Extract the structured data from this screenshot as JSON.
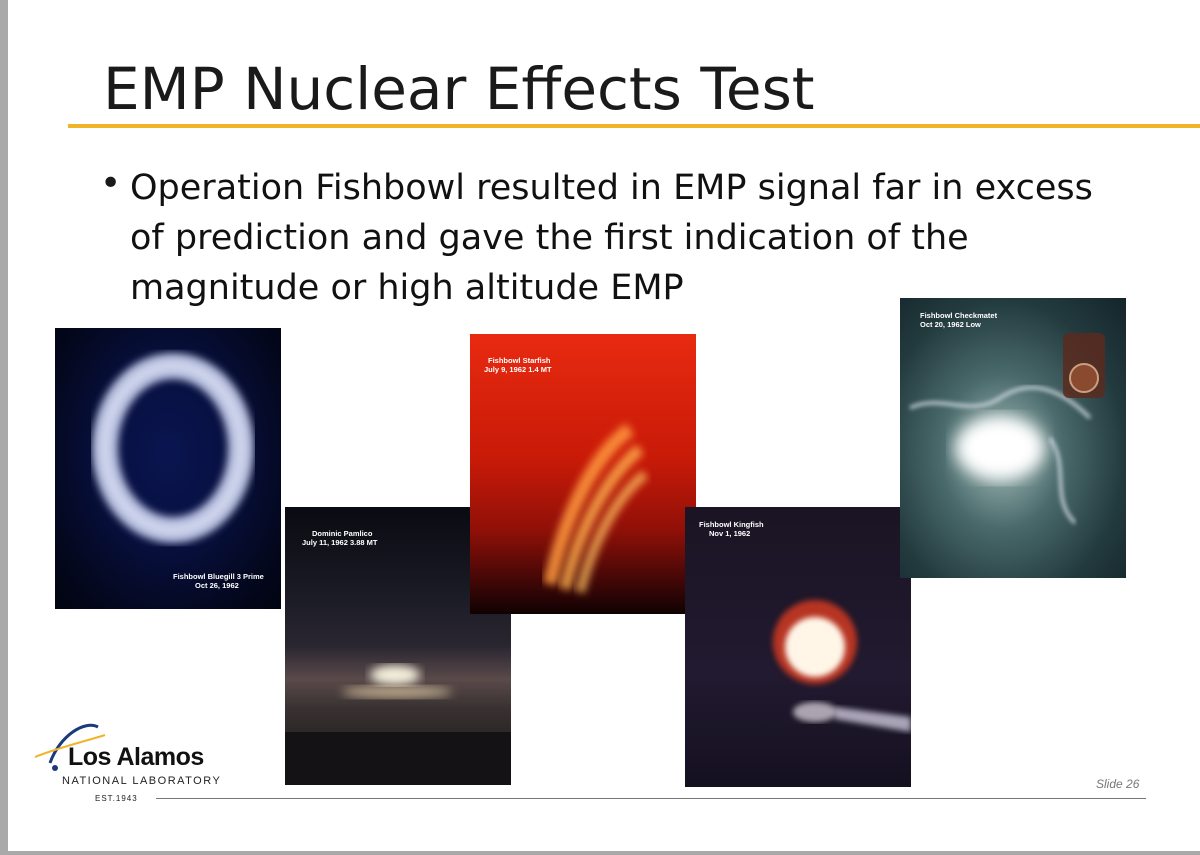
{
  "slide": {
    "title": "EMP Nuclear Effects Test",
    "bullet": "Operation Fishbowl  resulted in EMP signal far in excess of prediction and gave the first indication of the magnitude or high altitude EMP",
    "slide_number": "Slide 26"
  },
  "photos": [
    {
      "caption_line1": "Fishbowl Bluegill 3 Prime",
      "caption_line2": "Oct 26, 1962"
    },
    {
      "caption_line1": "Dominic Pamlico",
      "caption_line2": "July 11, 1962  3.88 MT"
    },
    {
      "caption_line1": "Fishbowl Starfish",
      "caption_line2": "July 9, 1962  1.4 MT"
    },
    {
      "caption_line1": "Fishbowl Kingfish",
      "caption_line2": "Nov 1, 1962"
    },
    {
      "caption_line1": "Fishbowl Checkmatet",
      "caption_line2": "Oct 20, 1962  Low"
    }
  ],
  "logo": {
    "name": "Los Alamos",
    "subtitle": "NATIONAL LABORATORY",
    "established": "EST.1943"
  },
  "colors": {
    "accent": "#f0b429",
    "background": "#ffffff",
    "frame": "#a9a9a9"
  }
}
